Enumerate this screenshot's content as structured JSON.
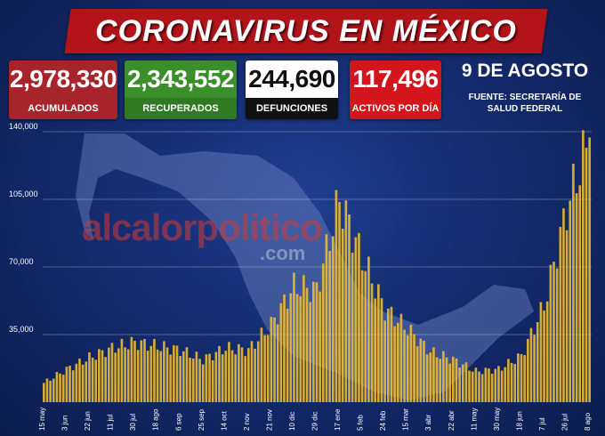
{
  "header": {
    "title": "CORONAVIRUS EN MÉXICO"
  },
  "stats": [
    {
      "value": "2,978,330",
      "label": "ACUMULADOS",
      "color": "#a6242a"
    },
    {
      "value": "2,343,552",
      "label": "RECUPERADOS",
      "color": "#3b8f2a"
    },
    {
      "value": "244,690",
      "label": "DEFUNCIONES",
      "color": "#111111"
    },
    {
      "value": "117,496",
      "label": "ACTIVOS POR DÍA",
      "color": "#d4151b"
    }
  ],
  "date": "9 DE AGOSTO",
  "source": "FUENTE: SECRETARÍA DE SALUD FEDERAL",
  "watermark": {
    "brand": "alcalorpolitico",
    "domain": ".com"
  },
  "chart_data": {
    "type": "bar",
    "title": "",
    "xlabel": "",
    "ylabel": "",
    "ylim": [
      0,
      140000
    ],
    "yticks": [
      35000,
      70000,
      105000,
      140000
    ],
    "ytick_labels": [
      "35,000",
      "70,000",
      "105,000",
      "140,000"
    ],
    "grid": true,
    "bar_color": "#f2bf2a",
    "xtick_labels": [
      "15 may",
      "3 jun",
      "22 jun",
      "11 jul",
      "30 jul",
      "18 ago",
      "6 sep",
      "25 sep",
      "14 oct",
      "2 nov",
      "21 nov",
      "10 dic",
      "29 dic",
      "17 ene",
      "5 feb",
      "24 feb",
      "15 mar",
      "3 abr",
      "22 abr",
      "11 may",
      "30 may",
      "18 jun",
      "7 jul",
      "26 jul",
      "8 ago"
    ],
    "anchors": [
      {
        "label": "15 may",
        "value": 10000
      },
      {
        "label": "3 jun",
        "value": 17000
      },
      {
        "label": "22 jun",
        "value": 23000
      },
      {
        "label": "11 jul",
        "value": 28000
      },
      {
        "label": "30 jul",
        "value": 31000
      },
      {
        "label": "18 ago",
        "value": 29000
      },
      {
        "label": "6 sep",
        "value": 27000
      },
      {
        "label": "25 sep",
        "value": 22000
      },
      {
        "label": "14 oct",
        "value": 28000
      },
      {
        "label": "2 nov",
        "value": 27000
      },
      {
        "label": "21 nov",
        "value": 40000
      },
      {
        "label": "10 dic",
        "value": 60000
      },
      {
        "label": "29 dic",
        "value": 58000
      },
      {
        "label": "17 ene",
        "value": 105000
      },
      {
        "label": "5 feb",
        "value": 75000
      },
      {
        "label": "24 feb",
        "value": 48000
      },
      {
        "label": "15 mar",
        "value": 38000
      },
      {
        "label": "3 abr",
        "value": 26000
      },
      {
        "label": "22 abr",
        "value": 22000
      },
      {
        "label": "11 may",
        "value": 16000
      },
      {
        "label": "30 may",
        "value": 17000
      },
      {
        "label": "18 jun",
        "value": 24000
      },
      {
        "label": "7 jul",
        "value": 50000
      },
      {
        "label": "26 jul",
        "value": 100000
      },
      {
        "label": "8 ago",
        "value": 137000
      }
    ]
  }
}
